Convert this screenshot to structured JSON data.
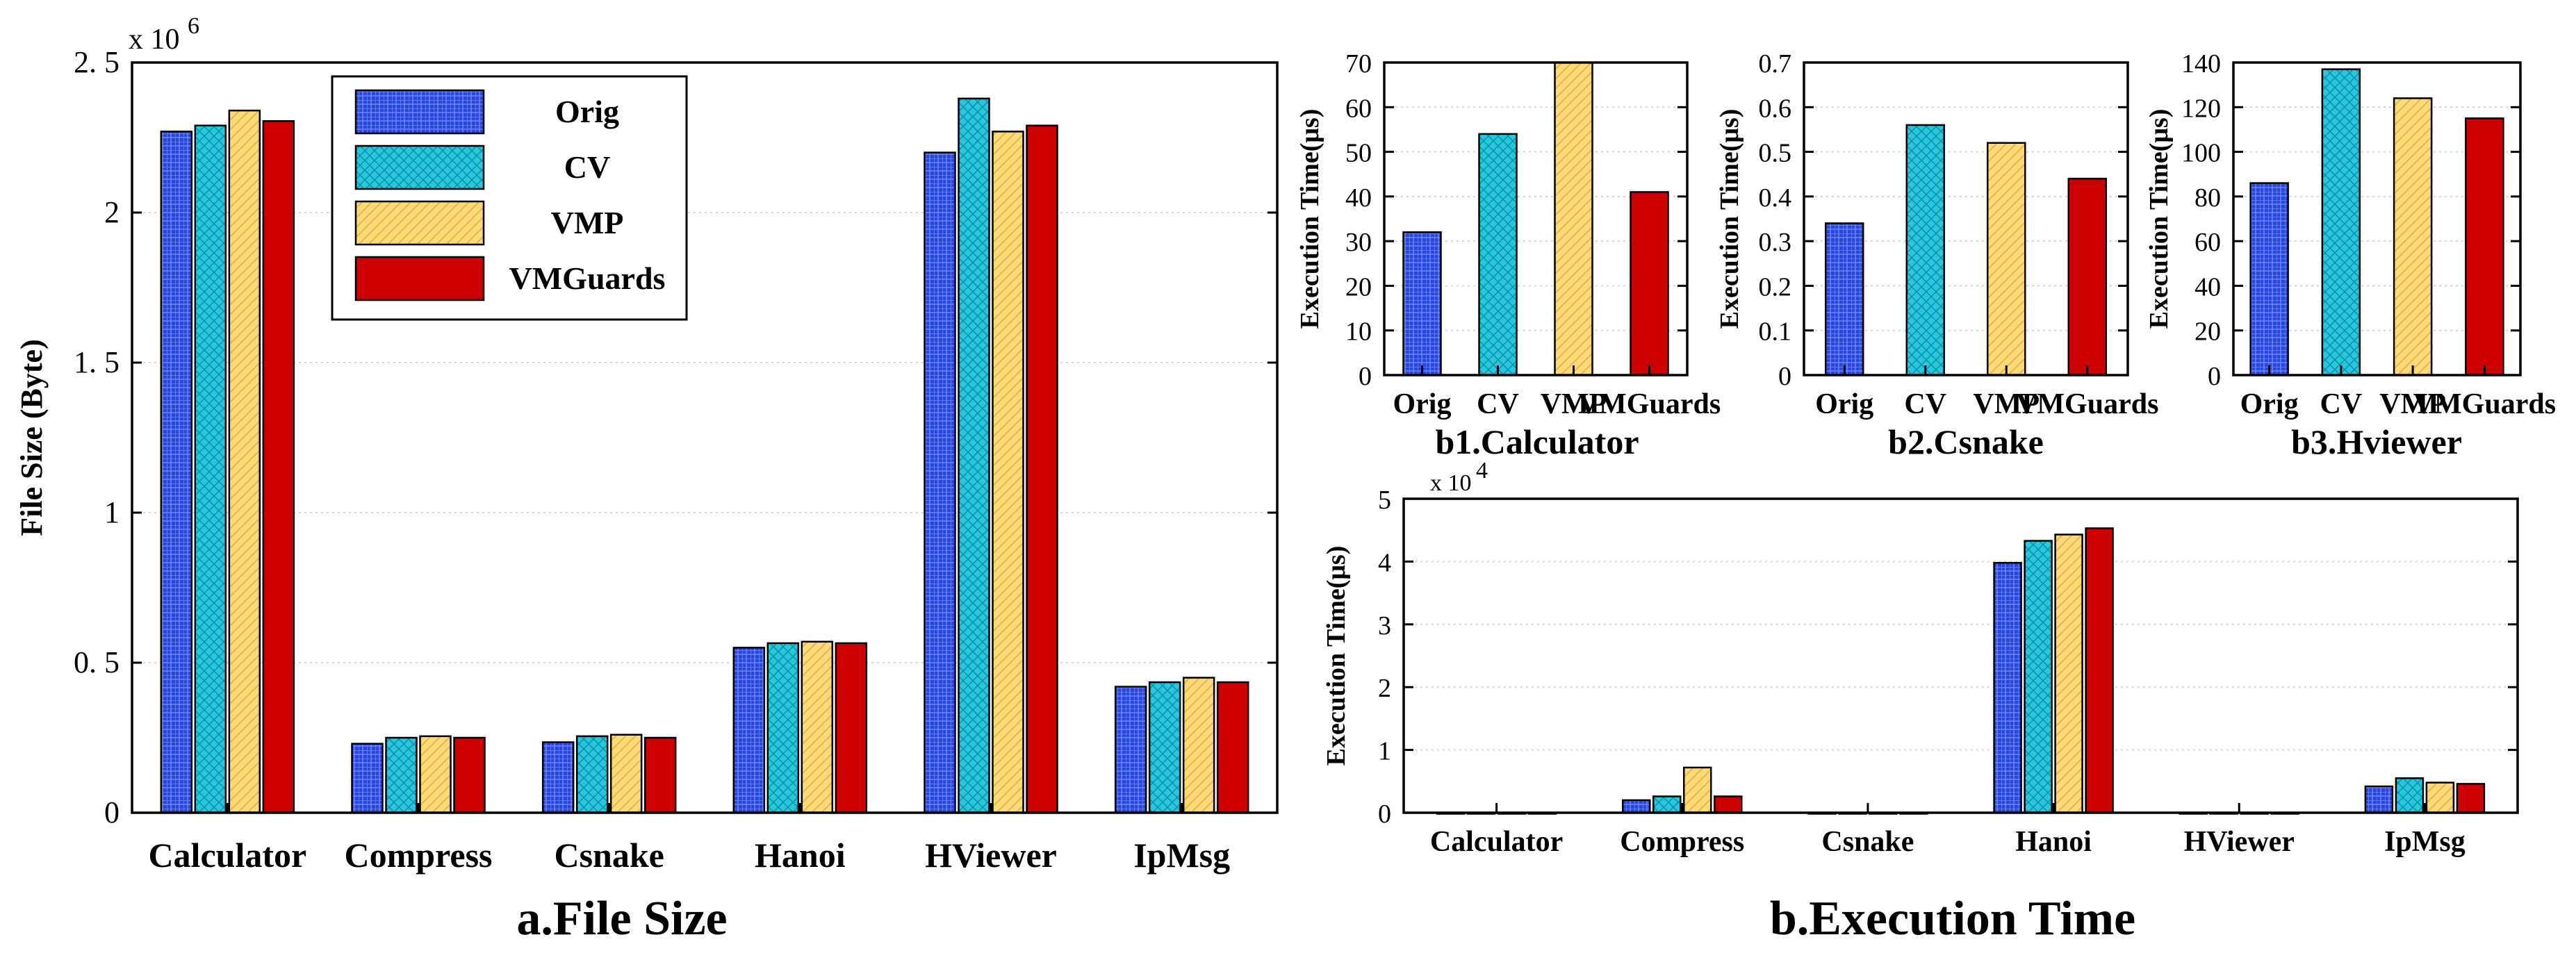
{
  "figure_title": "",
  "captions": {
    "a": "a.File Size",
    "b": "b.Execution Time"
  },
  "colors": {
    "Orig": "#2646e8",
    "CV": "#27c8dc",
    "VMP": "#fdd978",
    "VMGuards": "#cc0000"
  },
  "chart_data": [
    {
      "id": "a",
      "type": "bar",
      "title": "a.File Size",
      "xlabel": "",
      "ylabel": "File Size (Byte)",
      "exponent_label": "x 10",
      "exponent_power": "6",
      "ylim": [
        0,
        2.5
      ],
      "yticks": [
        0,
        0.5,
        1,
        1.5,
        2,
        2.5
      ],
      "ytick_labels": [
        "0",
        "0. 5",
        "1",
        "1. 5",
        "2",
        "2. 5"
      ],
      "categories": [
        "Calculator",
        "Compress",
        "Csnake",
        "Hanoi",
        "HViewer",
        "IpMsg"
      ],
      "legend": "top-left",
      "series": [
        {
          "name": "Orig",
          "values": [
            2.27,
            0.23,
            0.235,
            0.55,
            2.2,
            0.42
          ]
        },
        {
          "name": "CV",
          "values": [
            2.29,
            0.25,
            0.255,
            0.565,
            2.38,
            0.435
          ]
        },
        {
          "name": "VMP",
          "values": [
            2.34,
            0.255,
            0.26,
            0.57,
            2.27,
            0.45
          ]
        },
        {
          "name": "VMGuards",
          "values": [
            2.305,
            0.25,
            0.25,
            0.565,
            2.29,
            0.435
          ]
        }
      ]
    },
    {
      "id": "b1",
      "type": "bar",
      "title": "b1.Calculator",
      "ylabel": "Execution Time(μs)",
      "ylim": [
        0,
        70
      ],
      "yticks": [
        0,
        10,
        20,
        30,
        40,
        50,
        60,
        70
      ],
      "ytick_labels": [
        "0",
        "10",
        "20",
        "30",
        "40",
        "50",
        "60",
        "70"
      ],
      "categories": [
        "Orig",
        "CV",
        "VMP",
        "VMGuards"
      ],
      "values": [
        32,
        54,
        70,
        41
      ]
    },
    {
      "id": "b2",
      "type": "bar",
      "title": "b2.Csnake",
      "ylabel": "Execution Time(μs)",
      "ylim": [
        0,
        0.7
      ],
      "yticks": [
        0,
        0.1,
        0.2,
        0.3,
        0.4,
        0.5,
        0.6,
        0.7
      ],
      "ytick_labels": [
        "0",
        "0.1",
        "0.2",
        "0.3",
        "0.4",
        "0.5",
        "0.6",
        "0.7"
      ],
      "categories": [
        "Orig",
        "CV",
        "VMP",
        "VMGuards"
      ],
      "values": [
        0.34,
        0.56,
        0.52,
        0.44
      ]
    },
    {
      "id": "b3",
      "type": "bar",
      "title": "b3.Hviewer",
      "ylabel": "Execution Time(μs)",
      "ylim": [
        0,
        140
      ],
      "yticks": [
        0,
        20,
        40,
        60,
        80,
        100,
        120,
        140
      ],
      "ytick_labels": [
        "0",
        "20",
        "40",
        "60",
        "80",
        "100",
        "120",
        "140"
      ],
      "categories": [
        "Orig",
        "CV",
        "VMP",
        "VMGuards"
      ],
      "values": [
        86,
        137,
        124,
        115
      ]
    },
    {
      "id": "b",
      "type": "bar",
      "title": "b.Execution Time",
      "ylabel": "Execution Time(μs)",
      "exponent_label": "x 10",
      "exponent_power": "4",
      "ylim": [
        0,
        5
      ],
      "yticks": [
        0,
        1,
        2,
        3,
        4,
        5
      ],
      "ytick_labels": [
        "0",
        "1",
        "2",
        "3",
        "4",
        "5"
      ],
      "categories": [
        "Calculator",
        "Compress",
        "Csnake",
        "Hanoi",
        "HViewer",
        "IpMsg"
      ],
      "series": [
        {
          "name": "Orig",
          "values": [
            0.0,
            0.2,
            0.0,
            3.98,
            0.0,
            0.42
          ]
        },
        {
          "name": "CV",
          "values": [
            0.0,
            0.26,
            0.0,
            4.33,
            0.0,
            0.55
          ]
        },
        {
          "name": "VMP",
          "values": [
            0.0,
            0.72,
            0.0,
            4.43,
            0.0,
            0.48
          ]
        },
        {
          "name": "VMGuards",
          "values": [
            0.0,
            0.26,
            0.0,
            4.53,
            0.0,
            0.46
          ]
        }
      ]
    }
  ]
}
